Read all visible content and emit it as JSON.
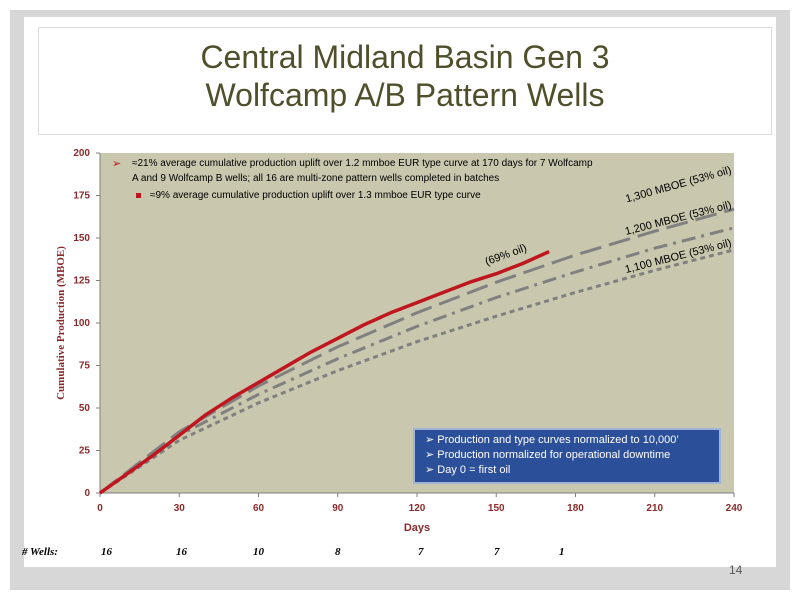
{
  "slide": {
    "title_line1": "Central Midland Basin Gen 3",
    "title_line2": "Wolfcamp A/B Pattern Wells",
    "page_number": "14"
  },
  "annotations": {
    "bullet1": "≈21% average cumulative production uplift over 1.2 mmboe EUR type curve at 170 days for 7 Wolfcamp",
    "bullet1_line2": "A and 9 Wolfcamp B wells; all 16 are multi-zone pattern wells completed in batches",
    "bullet2": "≈9% average cumulative production uplift over 1.3 mmboe EUR type curve",
    "oil_label": "(69% oil)",
    "info_box": [
      "Production and type curves normalized to 10,000’",
      "Production normalized for operational downtime",
      "Day 0 = first oil"
    ]
  },
  "wells_row": {
    "label": "# Wells:",
    "values": [
      "16",
      "16",
      "10",
      "8",
      "7",
      "7",
      "1"
    ]
  },
  "colors": {
    "plot_bg": "#c9c7ad",
    "production": "#c0161f",
    "type_curve": "#808080",
    "title": "#4f4f2b",
    "axis_label": "#8b2a2a",
    "info_box": "#2c4f9a"
  },
  "chart_data": {
    "type": "line",
    "xlabel": "Days",
    "ylabel": "Cumulative Production (MBOE)",
    "xlim": [
      0,
      240
    ],
    "ylim": [
      0,
      200
    ],
    "x_ticks": [
      0,
      30,
      60,
      90,
      120,
      150,
      180,
      210,
      240
    ],
    "y_ticks": [
      0,
      25,
      50,
      75,
      100,
      125,
      150,
      175,
      200
    ],
    "grid": false,
    "series": [
      {
        "name": "1,300 MBOE (53% oil)",
        "style": "long-dash",
        "x": [
          0,
          30,
          60,
          90,
          120,
          150,
          180,
          210,
          240
        ],
        "y": [
          0,
          36,
          63,
          86,
          106,
          124,
          140,
          154,
          167
        ]
      },
      {
        "name": "1,200 MBOE (53% oil)",
        "style": "dash-dot",
        "x": [
          0,
          30,
          60,
          90,
          120,
          150,
          180,
          210,
          240
        ],
        "y": [
          0,
          34,
          58,
          79,
          98,
          115,
          130,
          144,
          156
        ]
      },
      {
        "name": "1,100 MBOE (53% oil)",
        "style": "dotted",
        "x": [
          0,
          30,
          60,
          90,
          120,
          150,
          180,
          210,
          240
        ],
        "y": [
          0,
          31,
          53,
          72,
          89,
          104,
          118,
          131,
          143
        ]
      },
      {
        "style": "solid",
        "x": [
          0,
          10,
          20,
          30,
          40,
          50,
          60,
          70,
          80,
          90,
          100,
          110,
          120,
          130,
          140,
          150,
          160,
          170
        ],
        "y": [
          0,
          11,
          22,
          34,
          46,
          56,
          65,
          74,
          83,
          91,
          99,
          106,
          112,
          118,
          124,
          129,
          135,
          142
        ]
      }
    ]
  }
}
